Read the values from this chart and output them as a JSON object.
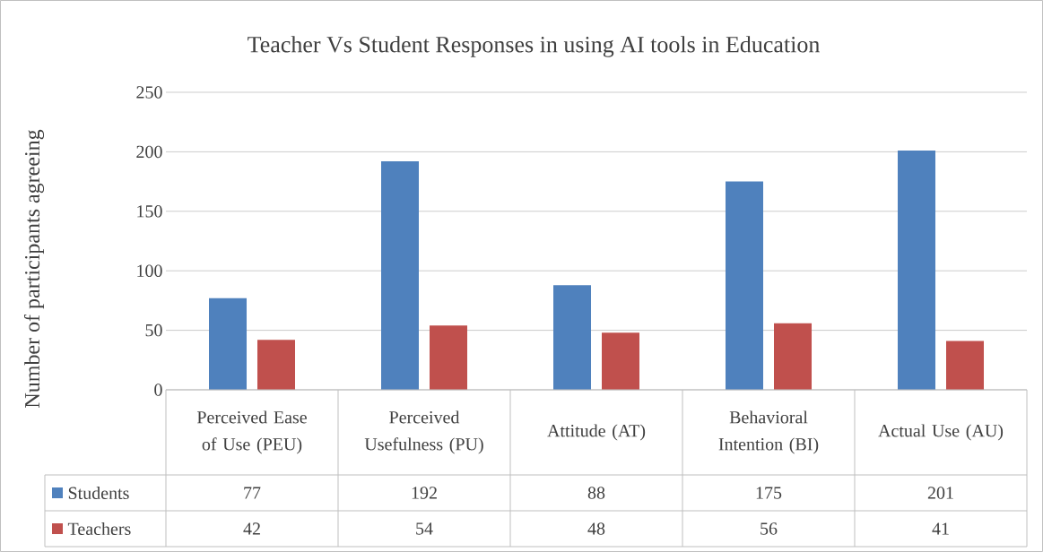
{
  "chart_data": {
    "type": "bar",
    "title": "Teacher Vs Student Responses in using AI tools in Education",
    "ylabel": "Number of participants agreeing",
    "categories": [
      "Perceived Ease of Use (PEU)",
      "Perceived Usefulness (PU)",
      "Attitude (AT)",
      "Behavioral Intention (BI)",
      "Actual Use (AU)"
    ],
    "series": [
      {
        "name": "Students",
        "color": "#4f81bd",
        "values": [
          77,
          192,
          88,
          175,
          201
        ]
      },
      {
        "name": "Teachers",
        "color": "#c0504d",
        "values": [
          42,
          54,
          48,
          56,
          41
        ]
      }
    ],
    "ylim": [
      0,
      250
    ],
    "yticks": [
      0,
      50,
      100,
      150,
      200,
      250
    ],
    "grid": "y",
    "data_labels": true,
    "legend": "bottom"
  }
}
